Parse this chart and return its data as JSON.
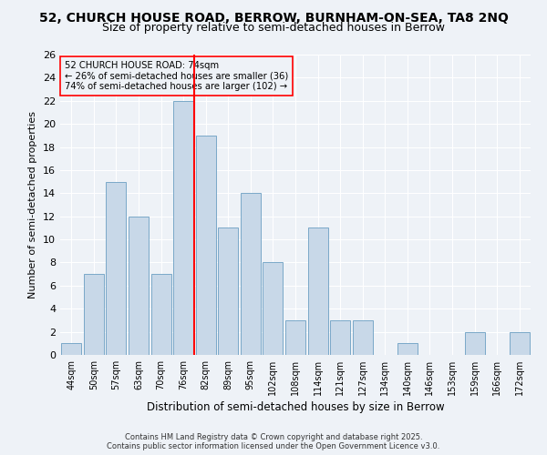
{
  "title1": "52, CHURCH HOUSE ROAD, BERROW, BURNHAM-ON-SEA, TA8 2NQ",
  "title2": "Size of property relative to semi-detached houses in Berrow",
  "xlabel": "Distribution of semi-detached houses by size in Berrow",
  "ylabel": "Number of semi-detached properties",
  "categories": [
    "44sqm",
    "50sqm",
    "57sqm",
    "63sqm",
    "70sqm",
    "76sqm",
    "82sqm",
    "89sqm",
    "95sqm",
    "102sqm",
    "108sqm",
    "114sqm",
    "121sqm",
    "127sqm",
    "134sqm",
    "140sqm",
    "146sqm",
    "153sqm",
    "159sqm",
    "166sqm",
    "172sqm"
  ],
  "values": [
    1,
    7,
    15,
    12,
    7,
    22,
    19,
    11,
    14,
    8,
    3,
    11,
    3,
    3,
    0,
    1,
    0,
    0,
    2,
    0,
    2
  ],
  "bar_color": "#c8d8e8",
  "bar_edge_color": "#7aa8c8",
  "annotation_title": "52 CHURCH HOUSE ROAD: 74sqm",
  "annotation_line1": "← 26% of semi-detached houses are smaller (36)",
  "annotation_line2": "74% of semi-detached houses are larger (102) →",
  "red_line_x": 5.5,
  "ylim": [
    0,
    26
  ],
  "yticks": [
    0,
    2,
    4,
    6,
    8,
    10,
    12,
    14,
    16,
    18,
    20,
    22,
    24,
    26
  ],
  "footnote1": "Contains HM Land Registry data © Crown copyright and database right 2025.",
  "footnote2": "Contains public sector information licensed under the Open Government Licence v3.0.",
  "bg_color": "#eef2f7",
  "grid_color": "#ffffff",
  "title_fontsize": 10,
  "subtitle_fontsize": 9,
  "bar_width": 0.9
}
